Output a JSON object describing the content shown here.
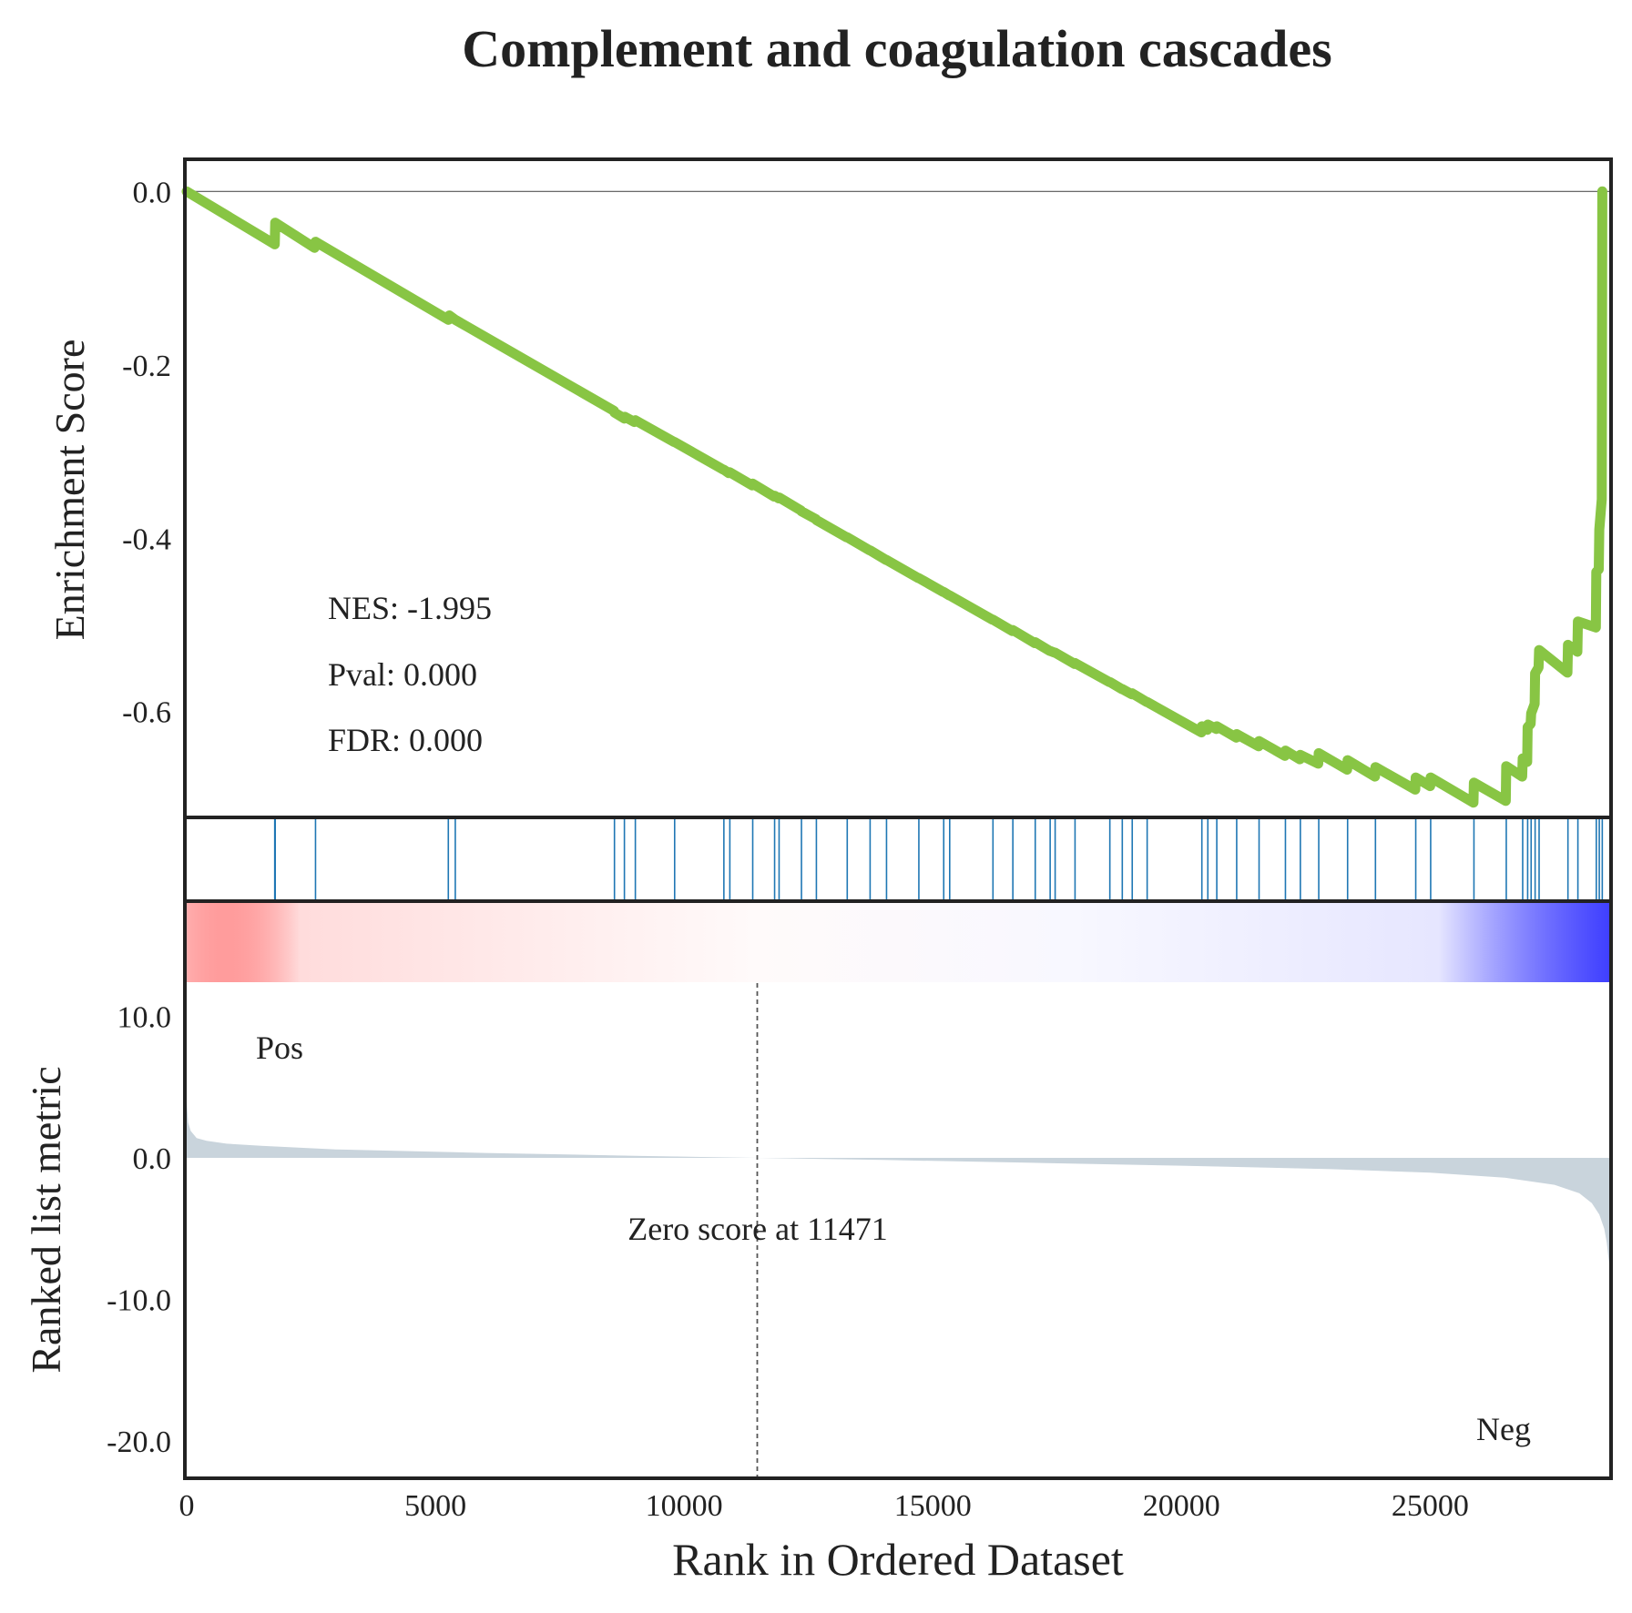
{
  "chart_data": {
    "type": "line",
    "title": "Complement and coagulation cascades",
    "xlabel": "Rank in Ordered Dataset",
    "xlim": [
      0,
      28600
    ],
    "x_ticks": [
      0,
      5000,
      10000,
      15000,
      20000,
      25000
    ],
    "x_tick_labels": [
      "0",
      "5000",
      "10000",
      "15000",
      "20000",
      "25000"
    ],
    "enrichment": {
      "ylabel": "Enrichment Score",
      "ylim": [
        -0.72,
        0.035
      ],
      "y_ticks": [
        0.0,
        -0.2,
        -0.4,
        -0.6
      ],
      "y_tick_labels": [
        "0.0",
        "-0.2",
        "-0.4",
        "-0.6"
      ],
      "line_color": "#88c544",
      "series": [
        {
          "x": [
            0,
            1770,
            1780,
            2570,
            2590,
            5260,
            5280,
            5400,
            8590,
            8600,
            8800,
            8810,
            9000,
            9020,
            9800,
            9810,
            10790,
            10800,
            10900,
            10920,
            11370,
            11380,
            11810,
            11820,
            11900,
            11910,
            12350,
            12360,
            12650,
            12660,
            13270,
            13280,
            13730,
            13740,
            14060,
            14070,
            14710,
            14720,
            15210,
            15220,
            15330,
            15340,
            16200,
            16210,
            16600,
            16610,
            17050,
            17060,
            17350,
            17360,
            17450,
            17460,
            17850,
            17860,
            18550,
            18560,
            18800,
            18810,
            19000,
            19010,
            19300,
            19310,
            20400,
            20410,
            20520,
            20530,
            20700,
            20710,
            21100,
            21110,
            21550,
            21560,
            22080,
            22090,
            22380,
            22390,
            22750,
            22760,
            23330,
            23340,
            23890,
            23900,
            24700,
            24710,
            25000,
            25010,
            25870,
            25880,
            26520,
            26530,
            26850,
            26860,
            26950,
            26960,
            27020,
            27030,
            27100,
            27110,
            27180,
            27190,
            27760,
            27770,
            27960,
            27970,
            28330,
            28340,
            28390,
            28400,
            28450,
            28460
          ],
          "y": [
            0.0,
            -0.061,
            -0.036,
            -0.065,
            -0.058,
            -0.148,
            -0.143,
            -0.148,
            -0.253,
            -0.255,
            -0.262,
            -0.26,
            -0.266,
            -0.264,
            -0.289,
            -0.289,
            -0.321,
            -0.321,
            -0.325,
            -0.324,
            -0.339,
            -0.337,
            -0.352,
            -0.351,
            -0.354,
            -0.353,
            -0.368,
            -0.369,
            -0.378,
            -0.379,
            -0.399,
            -0.399,
            -0.414,
            -0.414,
            -0.425,
            -0.425,
            -0.446,
            -0.446,
            -0.462,
            -0.462,
            -0.466,
            -0.466,
            -0.494,
            -0.494,
            -0.507,
            -0.506,
            -0.521,
            -0.52,
            -0.53,
            -0.53,
            -0.532,
            -0.532,
            -0.545,
            -0.544,
            -0.566,
            -0.566,
            -0.574,
            -0.574,
            -0.58,
            -0.579,
            -0.589,
            -0.589,
            -0.624,
            -0.617,
            -0.621,
            -0.615,
            -0.62,
            -0.617,
            -0.63,
            -0.626,
            -0.64,
            -0.634,
            -0.651,
            -0.645,
            -0.655,
            -0.65,
            -0.66,
            -0.648,
            -0.667,
            -0.656,
            -0.675,
            -0.664,
            -0.69,
            -0.676,
            -0.686,
            -0.676,
            -0.705,
            -0.682,
            -0.703,
            -0.663,
            -0.675,
            -0.654,
            -0.658,
            -0.618,
            -0.614,
            -0.602,
            -0.591,
            -0.556,
            -0.549,
            -0.529,
            -0.555,
            -0.523,
            -0.531,
            -0.496,
            -0.503,
            -0.439,
            -0.436,
            -0.39,
            -0.355,
            0.0
          ]
        }
      ],
      "annotations": [
        {
          "text": "NES: -1.995"
        },
        {
          "text": "Pval: 0.000"
        },
        {
          "text": "FDR: 0.000"
        }
      ]
    },
    "hits": {
      "color": "#1f77b4",
      "positions": [
        1770,
        1780,
        2590,
        5260,
        5400,
        8600,
        8800,
        9020,
        9810,
        10800,
        10920,
        11380,
        11820,
        11910,
        12360,
        12660,
        13280,
        13740,
        14070,
        14720,
        15220,
        15340,
        16210,
        16610,
        17060,
        17360,
        17460,
        17860,
        18560,
        18810,
        19010,
        19310,
        20410,
        20530,
        20710,
        21110,
        21560,
        22090,
        22390,
        22760,
        23340,
        23900,
        24710,
        25010,
        25880,
        26530,
        26860,
        26960,
        27030,
        27110,
        27190,
        27770,
        27970,
        28340,
        28400,
        28460
      ]
    },
    "ranked_metric": {
      "ylabel": "Ranked list metric",
      "ylim": [
        -22.5,
        18
      ],
      "y_ticks": [
        10.0,
        0.0,
        -10.0,
        -20.0
      ],
      "y_tick_labels": [
        "10.0",
        "0.0",
        "-10.0",
        "-20.0"
      ],
      "fill_color": "#c9d4dc",
      "x": [
        0,
        30,
        80,
        200,
        400,
        800,
        1500,
        3000,
        6000,
        9000,
        11471,
        14000,
        17000,
        20000,
        23000,
        25000,
        26500,
        27500,
        28000,
        28250,
        28400,
        28500,
        28550,
        28600
      ],
      "y": [
        4.0,
        2.5,
        1.9,
        1.4,
        1.2,
        1.0,
        0.85,
        0.6,
        0.35,
        0.15,
        0.0,
        -0.15,
        -0.35,
        -0.55,
        -0.8,
        -1.05,
        -1.4,
        -1.9,
        -2.5,
        -3.2,
        -4.0,
        -5.0,
        -6.0,
        -7.5
      ],
      "zero_cross": 11471,
      "zero_label": "Zero score at 11471",
      "pos_label": "Pos",
      "neg_label": "Neg",
      "pos_color": "#ff0000",
      "neg_color": "#0000ff"
    },
    "heatbar": {
      "type": "heatmap",
      "from_color": "#ff0000",
      "to_color": "#0000ff"
    }
  }
}
